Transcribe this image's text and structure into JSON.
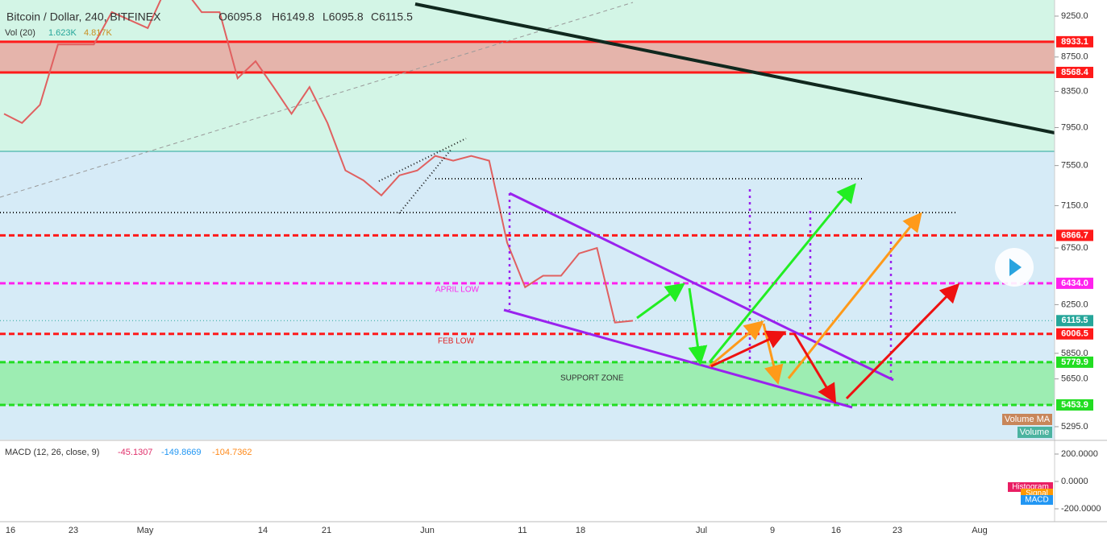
{
  "header": {
    "symbol": "Bitcoin / Dollar, 240, BITFINEX",
    "o": "O6095.8",
    "h": "H6149.8",
    "l": "L6095.8",
    "c": "C6115.5"
  },
  "volume": {
    "label": "Vol (20)",
    "v1": "1.623K",
    "v2": "4.817K",
    "ma_tag": "Volume MA",
    "vol_tag": "Volume"
  },
  "price_axis": {
    "log": true,
    "ticks": [
      {
        "value": 9250,
        "label": "9250.0"
      },
      {
        "value": 8750,
        "label": "8750.0"
      },
      {
        "value": 8350,
        "label": "8350.0"
      },
      {
        "value": 7950,
        "label": "7950.0"
      },
      {
        "value": 7550,
        "label": "7550.0"
      },
      {
        "value": 7150,
        "label": "7150.0"
      },
      {
        "value": 6750,
        "label": "6750.0"
      },
      {
        "value": 6250,
        "label": "6250.0"
      },
      {
        "value": 5850,
        "label": "5850.0"
      },
      {
        "value": 5650,
        "label": "5650.0"
      },
      {
        "value": 5295,
        "label": "5295.0"
      }
    ]
  },
  "levels": [
    {
      "value": 8933.1,
      "label": "8933.1",
      "color": "#ff1a1a",
      "style": "solid"
    },
    {
      "value": 8568.4,
      "label": "8568.4",
      "color": "#ff1a1a",
      "style": "solid"
    },
    {
      "value": 6866.7,
      "label": "6866.7",
      "color": "#ff1a1a",
      "style": "dashed"
    },
    {
      "value": 6434.0,
      "label": "6434.0",
      "color": "#ff22ee",
      "style": "dashed"
    },
    {
      "value": 6115.5,
      "label": "6115.5",
      "color": "#26a69a",
      "style": "dotted"
    },
    {
      "value": 6006.5,
      "label": "6006.5",
      "color": "#ff1a1a",
      "style": "dashed"
    },
    {
      "value": 5779.9,
      "label": "5779.9",
      "color": "#22dd22",
      "style": "dashed"
    },
    {
      "value": 5453.9,
      "label": "5453.9",
      "color": "#22dd22",
      "style": "dashed"
    }
  ],
  "annotations": {
    "april_low": "APRIL LOW",
    "feb_low": "FEB LOW",
    "support_zone": "SUPPORT ZONE"
  },
  "price_line": {
    "color": "#e06060",
    "values": [
      8100,
      8000,
      8200,
      8900,
      8900,
      8900,
      9300,
      9200,
      9100,
      9600,
      9600,
      9300,
      9300,
      8500,
      8700,
      8400,
      8100,
      8400,
      8000,
      7500,
      7400,
      7250,
      7450,
      7500,
      7650,
      7600,
      7650,
      7600,
      6800,
      6400,
      6500,
      6500,
      6700,
      6750,
      6100,
      6115
    ]
  },
  "macd": {
    "label": "MACD (12, 26, close, 9)",
    "v1": "-45.1307",
    "v2": "-149.8669",
    "v3": "-104.7362",
    "ticks": [
      {
        "value": 200,
        "label": "200.0000"
      },
      {
        "value": 0,
        "label": "0.0000"
      },
      {
        "value": -200,
        "label": "-200.0000"
      }
    ],
    "tags": [
      "Histogram",
      "Signal",
      "MACD"
    ]
  },
  "dates": [
    "16",
    "23",
    "May",
    "14",
    "21",
    "Jun",
    "11",
    "18",
    "Jul",
    "9",
    "16",
    "23",
    "Aug"
  ]
}
